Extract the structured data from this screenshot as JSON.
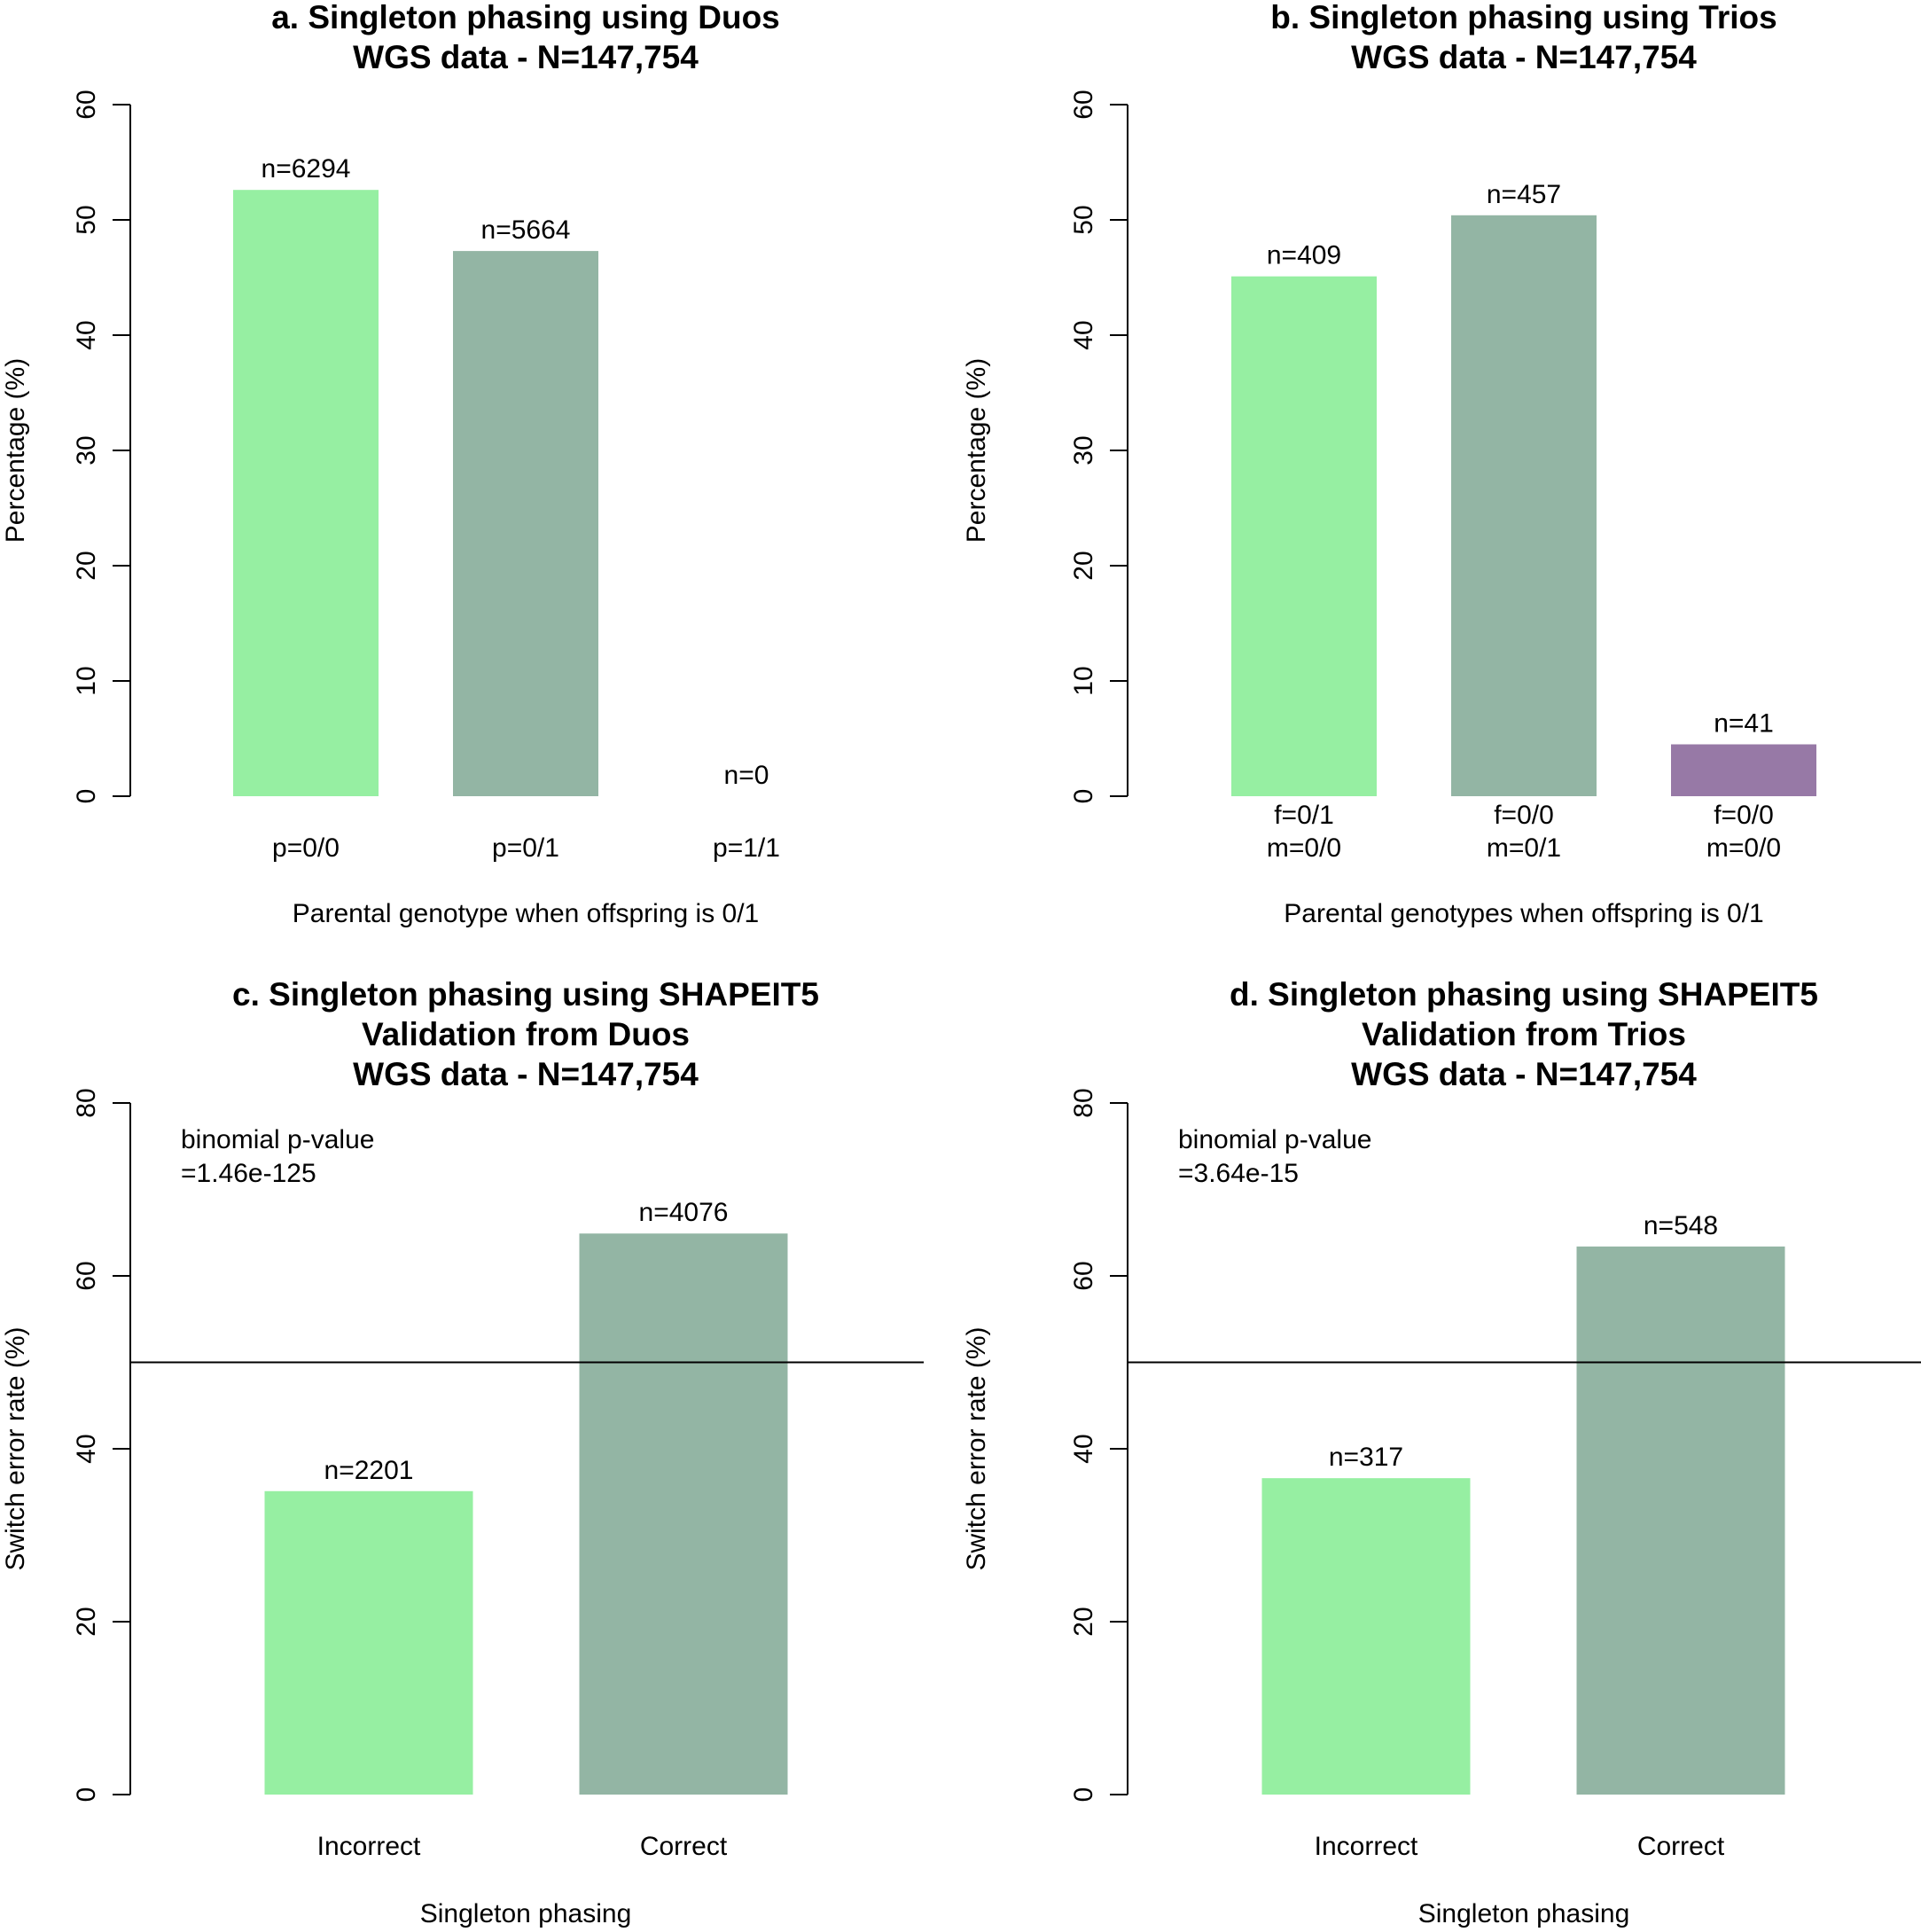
{
  "colors": {
    "green_light": "#96efa2",
    "green_gray": "#93b5a4",
    "purple": "#9779a6",
    "axis": "#000000"
  },
  "chart_data": [
    {
      "panel": "a",
      "type": "bar",
      "title": [
        "a. Singleton phasing using Duos",
        "WGS data - N=147,754"
      ],
      "ylabel": "Percentage (%)",
      "xlabel": "Parental genotype when offspring is 0/1",
      "ylim": [
        0,
        60
      ],
      "yticks": [
        "0",
        "10",
        "20",
        "30",
        "40",
        "50",
        "60"
      ],
      "categories": [
        [
          "p=0/0"
        ],
        [
          "p=0/1"
        ],
        [
          "p=1/1"
        ]
      ],
      "values": [
        52.6,
        47.3,
        0
      ],
      "bar_labels": [
        "n=6294",
        "n=5664",
        "n=0"
      ],
      "bar_colors": [
        "green_light",
        "green_gray",
        "purple"
      ]
    },
    {
      "panel": "b",
      "type": "bar",
      "title": [
        "b. Singleton phasing using Trios",
        "WGS data - N=147,754"
      ],
      "ylabel": "Percentage (%)",
      "xlabel": "Parental genotypes when offspring is 0/1",
      "ylim": [
        0,
        60
      ],
      "yticks": [
        "0",
        "10",
        "20",
        "30",
        "40",
        "50",
        "60"
      ],
      "categories": [
        [
          "f=0/1",
          "m=0/0"
        ],
        [
          "f=0/0",
          "m=0/1"
        ],
        [
          "f=0/0",
          "m=0/0"
        ]
      ],
      "values": [
        45.1,
        50.4,
        4.5
      ],
      "bar_labels": [
        "n=409",
        "n=457",
        "n=41"
      ],
      "bar_colors": [
        "green_light",
        "green_gray",
        "purple"
      ]
    },
    {
      "panel": "c",
      "type": "bar",
      "title": [
        "c. Singleton phasing using SHAPEIT5",
        "Validation from Duos",
        "WGS data - N=147,754"
      ],
      "ylabel": "Switch error rate (%)",
      "xlabel": "Singleton phasing",
      "ylim": [
        0,
        80
      ],
      "yticks": [
        "0",
        "20",
        "40",
        "60",
        "80"
      ],
      "categories": [
        [
          "Incorrect"
        ],
        [
          "Correct"
        ]
      ],
      "values": [
        35.1,
        64.9
      ],
      "bar_labels": [
        "n=2201",
        "n=4076"
      ],
      "bar_colors": [
        "green_light",
        "green_gray"
      ],
      "hline": 50,
      "annotation": [
        "binomial p-value",
        "=1.46e-125"
      ]
    },
    {
      "panel": "d",
      "type": "bar",
      "title": [
        "d. Singleton phasing using SHAPEIT5",
        "Validation from Trios",
        "WGS data - N=147,754"
      ],
      "ylabel": "Switch error rate (%)",
      "xlabel": "Singleton phasing",
      "ylim": [
        0,
        80
      ],
      "yticks": [
        "0",
        "20",
        "40",
        "60",
        "80"
      ],
      "categories": [
        [
          "Incorrect"
        ],
        [
          "Correct"
        ]
      ],
      "values": [
        36.6,
        63.4
      ],
      "bar_labels": [
        "n=317",
        "n=548"
      ],
      "bar_colors": [
        "green_light",
        "green_gray"
      ],
      "hline": 50,
      "annotation": [
        "binomial p-value",
        "=3.64e-15"
      ]
    }
  ]
}
